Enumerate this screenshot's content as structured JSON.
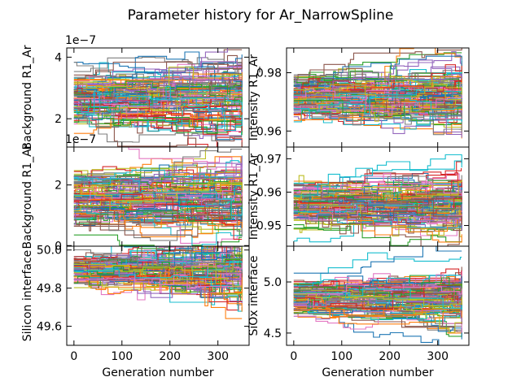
{
  "figure": {
    "title": "Parameter history for Ar_NarrowSpline"
  },
  "chart_data": [
    {
      "type": "line",
      "panel": "top-left",
      "title": "",
      "ylabel": "Background R1_Ar",
      "xlabel": "",
      "multiplier": "1e−7",
      "xlim": [
        -15,
        365
      ],
      "ylim": [
        1.08,
        4.3
      ],
      "xticks": [
        0,
        100,
        200,
        300
      ],
      "yticks": [
        2,
        4
      ],
      "yticklabels": [
        "2",
        "4"
      ],
      "series_count": 120,
      "generations": 350,
      "series_summary": "~120 walker traces over 350 generations, values mostly between 1.5 and 3.5 (×1e-7)",
      "center": 2.6,
      "spread_start": 0.45,
      "spread_end": 0.6
    },
    {
      "type": "line",
      "panel": "top-right",
      "title": "",
      "ylabel": "Intensity R1_Ar",
      "xlabel": "",
      "xlim": [
        -15,
        365
      ],
      "ylim": [
        0.9545,
        0.9885
      ],
      "xticks": [
        0,
        100,
        200,
        300
      ],
      "yticks": [
        0.96,
        0.98
      ],
      "yticklabels": [
        "0.96",
        "0.98"
      ],
      "series_count": 120,
      "generations": 350,
      "series_summary": "~120 walker traces over 350 generations, values mostly between 0.962 and 0.984",
      "center": 0.9715,
      "spread_start": 0.004,
      "spread_end": 0.0055
    },
    {
      "type": "line",
      "panel": "middle-left",
      "title": "",
      "ylabel": "Background R1_Ar",
      "xlabel": "",
      "multiplier": "1e−7",
      "xlim": [
        -15,
        365
      ],
      "ylim": [
        -0.02,
        3.25
      ],
      "xticks": [
        0,
        100,
        200,
        300
      ],
      "yticks": [
        0,
        2
      ],
      "yticklabels": [
        "0",
        "2"
      ],
      "series_count": 120,
      "generations": 350,
      "series_summary": "~120 walker traces over 350 generations, values mostly between 0.7 and 2.8 (×1e-7)",
      "center": 1.6,
      "spread_start": 0.45,
      "spread_end": 0.6
    },
    {
      "type": "line",
      "panel": "middle-right",
      "title": "",
      "ylabel": "Intensity R1_Ar",
      "xlabel": "",
      "xlim": [
        -15,
        365
      ],
      "ylim": [
        0.9438,
        0.9735
      ],
      "xticks": [
        0,
        100,
        200,
        300
      ],
      "yticks": [
        0.95,
        0.96,
        0.97
      ],
      "yticklabels": [
        "0.95",
        "0.96",
        "0.97"
      ],
      "series_count": 120,
      "generations": 350,
      "series_summary": "~120 walker traces over 350 generations, values mostly between 0.946 and 0.968",
      "center": 0.9565,
      "spread_start": 0.0035,
      "spread_end": 0.005
    },
    {
      "type": "line",
      "panel": "bottom-left",
      "title": "",
      "ylabel": "Silicon interface",
      "xlabel": "Generation number",
      "xlim": [
        -15,
        365
      ],
      "ylim": [
        49.5,
        50.02
      ],
      "xticks": [
        0,
        100,
        200,
        300
      ],
      "xticklabels": [
        "0",
        "100",
        "200",
        "300"
      ],
      "yticks": [
        49.6,
        49.8,
        50.0
      ],
      "yticklabels": [
        "49.6",
        "49.8",
        "50.0"
      ],
      "series_count": 120,
      "generations": 350,
      "series_summary": "~120 walker traces over 350 generations, starting near 49.95 and spreading downward to ~49.55",
      "center": 49.9,
      "spread_start": 0.04,
      "spread_end": 0.12
    },
    {
      "type": "line",
      "panel": "bottom-right",
      "title": "",
      "ylabel": "SiOx interface",
      "xlabel": "Generation number",
      "xlim": [
        -15,
        365
      ],
      "ylim": [
        4.38,
        5.35
      ],
      "xticks": [
        0,
        100,
        200,
        300
      ],
      "xticklabels": [
        "0",
        "100",
        "200",
        "300"
      ],
      "yticks": [
        4.5,
        5.0
      ],
      "yticklabels": [
        "4.5",
        "5.0"
      ],
      "series_count": 120,
      "generations": 350,
      "series_summary": "~120 walker traces over 350 generations, values mostly between 4.55 and 5.15",
      "center": 4.85,
      "spread_start": 0.09,
      "spread_end": 0.14
    }
  ],
  "palette": [
    "#1f77b4",
    "#ff7f0e",
    "#2ca02c",
    "#d62728",
    "#9467bd",
    "#8c564b",
    "#e377c2",
    "#7f7f7f",
    "#bcbd22",
    "#17becf"
  ]
}
